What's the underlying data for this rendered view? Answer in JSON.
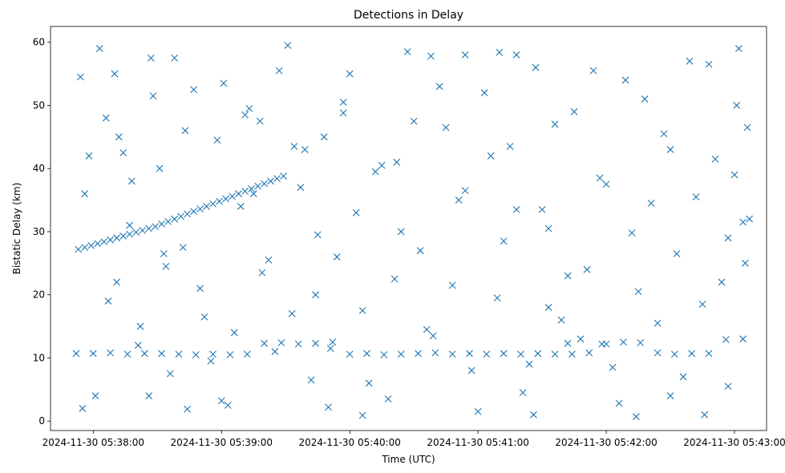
{
  "chart_data": {
    "type": "scatter",
    "title": "Detections in Delay",
    "xlabel": "Time (UTC)",
    "ylabel": "Bistatic Delay (km)",
    "marker": "x",
    "color": "#1f77b4",
    "grid": false,
    "x_tick_labels": [
      "2024-11-30 05:38:00",
      "2024-11-30 05:39:00",
      "2024-11-30 05:40:00",
      "2024-11-30 05:41:00",
      "2024-11-30 05:42:00",
      "2024-11-30 05:43:00"
    ],
    "y_ticks": [
      0,
      10,
      20,
      30,
      40,
      50,
      60
    ],
    "xlim": [
      "2024-11-30 05:37:40",
      "2024-11-30 05:43:15"
    ],
    "ylim": [
      -1.5,
      62.5
    ],
    "track": {
      "x": [
        "2024-11-30 05:37:53",
        "2024-11-30 05:37:56",
        "2024-11-30 05:37:59",
        "2024-11-30 05:38:02",
        "2024-11-30 05:38:05",
        "2024-11-30 05:38:08",
        "2024-11-30 05:38:11",
        "2024-11-30 05:38:14",
        "2024-11-30 05:38:17",
        "2024-11-30 05:38:20",
        "2024-11-30 05:38:23",
        "2024-11-30 05:38:26",
        "2024-11-30 05:38:29",
        "2024-11-30 05:38:32",
        "2024-11-30 05:38:35",
        "2024-11-30 05:38:38",
        "2024-11-30 05:38:41",
        "2024-11-30 05:38:44",
        "2024-11-30 05:38:47",
        "2024-11-30 05:38:50",
        "2024-11-30 05:38:53",
        "2024-11-30 05:38:56",
        "2024-11-30 05:38:59",
        "2024-11-30 05:39:02",
        "2024-11-30 05:39:05",
        "2024-11-30 05:39:08",
        "2024-11-30 05:39:11",
        "2024-11-30 05:39:14",
        "2024-11-30 05:39:17",
        "2024-11-30 05:39:20",
        "2024-11-30 05:39:23",
        "2024-11-30 05:39:26",
        "2024-11-30 05:39:29"
      ],
      "y": [
        27.2,
        27.5,
        27.8,
        28.1,
        28.4,
        28.7,
        29.0,
        29.3,
        29.6,
        29.9,
        30.2,
        30.5,
        30.8,
        31.2,
        31.6,
        32.0,
        32.4,
        32.8,
        33.2,
        33.6,
        34.0,
        34.4,
        34.8,
        35.2,
        35.6,
        36.0,
        36.4,
        36.8,
        37.2,
        37.6,
        38.0,
        38.4,
        38.8
      ]
    },
    "series": [
      {
        "x": [
          "2024-11-30 05:37:52",
          "2024-11-30 05:38:00",
          "2024-11-30 05:38:08",
          "2024-11-30 05:38:16",
          "2024-11-30 05:38:24",
          "2024-11-30 05:38:32",
          "2024-11-30 05:38:40",
          "2024-11-30 05:38:48",
          "2024-11-30 05:38:56",
          "2024-11-30 05:39:04",
          "2024-11-30 05:39:12",
          "2024-11-30 05:39:20",
          "2024-11-30 05:39:28",
          "2024-11-30 05:39:36",
          "2024-11-30 05:39:44",
          "2024-11-30 05:39:52",
          "2024-11-30 05:40:00",
          "2024-11-30 05:40:08",
          "2024-11-30 05:40:16",
          "2024-11-30 05:40:24",
          "2024-11-30 05:40:32",
          "2024-11-30 05:40:40",
          "2024-11-30 05:40:48",
          "2024-11-30 05:40:56",
          "2024-11-30 05:41:04",
          "2024-11-30 05:41:12",
          "2024-11-30 05:41:20",
          "2024-11-30 05:41:28",
          "2024-11-30 05:41:36",
          "2024-11-30 05:41:44",
          "2024-11-30 05:41:52",
          "2024-11-30 05:42:00",
          "2024-11-30 05:42:08",
          "2024-11-30 05:42:16",
          "2024-11-30 05:42:24",
          "2024-11-30 05:42:32",
          "2024-11-30 05:42:40",
          "2024-11-30 05:42:48",
          "2024-11-30 05:42:56",
          "2024-11-30 05:43:04",
          "2024-11-30 05:37:55",
          "2024-11-30 05:38:10",
          "2024-11-30 05:38:26",
          "2024-11-30 05:38:44",
          "2024-11-30 05:39:00",
          "2024-11-30 05:39:18",
          "2024-11-30 05:39:34",
          "2024-11-30 05:39:50",
          "2024-11-30 05:40:06",
          "2024-11-30 05:40:22",
          "2024-11-30 05:40:38",
          "2024-11-30 05:40:54",
          "2024-11-30 05:41:10",
          "2024-11-30 05:41:26",
          "2024-11-30 05:41:42",
          "2024-11-30 05:41:58",
          "2024-11-30 05:42:14",
          "2024-11-30 05:42:30",
          "2024-11-30 05:42:46",
          "2024-11-30 05:43:02"
        ],
        "y": [
          10.7,
          10.7,
          10.8,
          10.6,
          10.7,
          10.7,
          10.6,
          10.5,
          10.6,
          10.5,
          10.6,
          12.3,
          12.4,
          12.2,
          12.3,
          12.5,
          10.6,
          10.7,
          10.5,
          10.6,
          10.7,
          10.8,
          10.6,
          10.7,
          10.6,
          10.7,
          10.6,
          10.7,
          10.6,
          10.6,
          10.8,
          12.2,
          12.5,
          12.4,
          10.8,
          10.6,
          10.7,
          10.7,
          12.9,
          13.0,
          2.0,
          55.0,
          4.0,
          1.9,
          3.2,
          47.5,
          43.5,
          2.2,
          0.9,
          41.0,
          57.8,
          58.0,
          58.4,
          1.0,
          12.3,
          12.2,
          0.7,
          4.0,
          1.0,
          59.0
        ]
      },
      {
        "x": [
          "2024-11-30 05:37:54",
          "2024-11-30 05:37:58",
          "2024-11-30 05:38:03",
          "2024-11-30 05:38:07",
          "2024-11-30 05:38:12",
          "2024-11-30 05:38:18",
          "2024-11-30 05:38:22",
          "2024-11-30 05:38:28",
          "2024-11-30 05:38:34",
          "2024-11-30 05:38:38",
          "2024-11-30 05:38:43",
          "2024-11-30 05:38:50",
          "2024-11-30 05:38:55",
          "2024-11-30 05:39:01",
          "2024-11-30 05:39:06",
          "2024-11-30 05:39:11",
          "2024-11-30 05:39:15",
          "2024-11-30 05:39:22",
          "2024-11-30 05:39:27",
          "2024-11-30 05:39:33",
          "2024-11-30 05:39:39",
          "2024-11-30 05:39:45",
          "2024-11-30 05:39:51",
          "2024-11-30 05:39:57",
          "2024-11-30 05:40:03",
          "2024-11-30 05:40:09",
          "2024-11-30 05:40:15",
          "2024-11-30 05:40:21",
          "2024-11-30 05:40:27",
          "2024-11-30 05:40:33",
          "2024-11-30 05:40:39",
          "2024-11-30 05:40:45",
          "2024-11-30 05:40:51",
          "2024-11-30 05:40:57",
          "2024-11-30 05:41:03",
          "2024-11-30 05:41:09",
          "2024-11-30 05:41:15",
          "2024-11-30 05:41:21",
          "2024-11-30 05:41:27",
          "2024-11-30 05:41:33",
          "2024-11-30 05:41:39",
          "2024-11-30 05:41:45",
          "2024-11-30 05:41:51",
          "2024-11-30 05:41:57",
          "2024-11-30 05:42:03",
          "2024-11-30 05:42:09",
          "2024-11-30 05:42:15",
          "2024-11-30 05:42:21",
          "2024-11-30 05:42:27",
          "2024-11-30 05:42:33",
          "2024-11-30 05:42:39",
          "2024-11-30 05:42:45",
          "2024-11-30 05:42:51",
          "2024-11-30 05:42:57",
          "2024-11-30 05:43:01",
          "2024-11-30 05:43:05",
          "2024-11-30 05:43:07",
          "2024-11-30 05:38:14",
          "2024-11-30 05:39:44",
          "2024-11-30 05:41:18"
        ],
        "y": [
          54.5,
          42.0,
          59.0,
          19.0,
          45.0,
          38.0,
          15.0,
          51.5,
          24.5,
          57.5,
          46.0,
          21.0,
          9.5,
          53.5,
          14.0,
          48.5,
          36.0,
          25.5,
          55.5,
          17.0,
          43.0,
          29.5,
          11.5,
          50.5,
          33.0,
          6.0,
          40.5,
          22.5,
          58.5,
          27.0,
          13.5,
          46.5,
          35.0,
          8.0,
          52.0,
          19.5,
          43.5,
          4.5,
          56.0,
          30.5,
          16.0,
          49.0,
          24.0,
          38.5,
          8.5,
          54.0,
          20.5,
          34.5,
          45.5,
          26.5,
          57.0,
          18.5,
          41.5,
          29.0,
          50.0,
          25.0,
          32.0,
          42.5,
          20.0,
          33.5
        ]
      },
      {
        "x": [
          "2024-11-30 05:37:56",
          "2024-11-30 05:38:01",
          "2024-11-30 05:38:06",
          "2024-11-30 05:38:11",
          "2024-11-30 05:38:17",
          "2024-11-30 05:38:21",
          "2024-11-30 05:38:27",
          "2024-11-30 05:38:31",
          "2024-11-30 05:38:36",
          "2024-11-30 05:38:42",
          "2024-11-30 05:38:47",
          "2024-11-30 05:38:52",
          "2024-11-30 05:38:58",
          "2024-11-30 05:39:03",
          "2024-11-30 05:39:09",
          "2024-11-30 05:39:13",
          "2024-11-30 05:39:19",
          "2024-11-30 05:39:25",
          "2024-11-30 05:39:31",
          "2024-11-30 05:39:37",
          "2024-11-30 05:39:42",
          "2024-11-30 05:39:48",
          "2024-11-30 05:39:54",
          "2024-11-30 05:40:00",
          "2024-11-30 05:40:06",
          "2024-11-30 05:40:12",
          "2024-11-30 05:40:18",
          "2024-11-30 05:40:24",
          "2024-11-30 05:40:30",
          "2024-11-30 05:40:36",
          "2024-11-30 05:40:42",
          "2024-11-30 05:40:48",
          "2024-11-30 05:40:54",
          "2024-11-30 05:41:00",
          "2024-11-30 05:41:06",
          "2024-11-30 05:41:12",
          "2024-11-30 05:41:18",
          "2024-11-30 05:41:24",
          "2024-11-30 05:41:30",
          "2024-11-30 05:41:36",
          "2024-11-30 05:41:42",
          "2024-11-30 05:41:48",
          "2024-11-30 05:41:54",
          "2024-11-30 05:42:00",
          "2024-11-30 05:42:06",
          "2024-11-30 05:42:12",
          "2024-11-30 05:42:18",
          "2024-11-30 05:42:24",
          "2024-11-30 05:42:30",
          "2024-11-30 05:42:36",
          "2024-11-30 05:42:42",
          "2024-11-30 05:42:48",
          "2024-11-30 05:42:54",
          "2024-11-30 05:43:00",
          "2024-11-30 05:43:04",
          "2024-11-30 05:43:06",
          "2024-11-30 05:38:33",
          "2024-11-30 05:39:57",
          "2024-11-30 05:41:33",
          "2024-11-30 05:42:57"
        ],
        "y": [
          36.0,
          4.0,
          48.0,
          22.0,
          31.0,
          12.0,
          57.5,
          40.0,
          7.5,
          27.5,
          52.5,
          16.5,
          44.5,
          2.5,
          34.0,
          49.5,
          23.5,
          11.0,
          59.5,
          37.0,
          6.5,
          45.0,
          26.0,
          55.0,
          17.5,
          39.5,
          3.5,
          30.0,
          47.5,
          14.5,
          53.0,
          21.5,
          36.5,
          1.5,
          42.0,
          28.5,
          58.0,
          9.0,
          33.5,
          47.0,
          23.0,
          13.0,
          55.5,
          37.5,
          2.8,
          29.8,
          51.0,
          15.5,
          43.0,
          7.0,
          35.5,
          56.5,
          22.0,
          39.0,
          31.5,
          46.5,
          26.5,
          48.8,
          18.0,
          5.5
        ]
      }
    ]
  }
}
